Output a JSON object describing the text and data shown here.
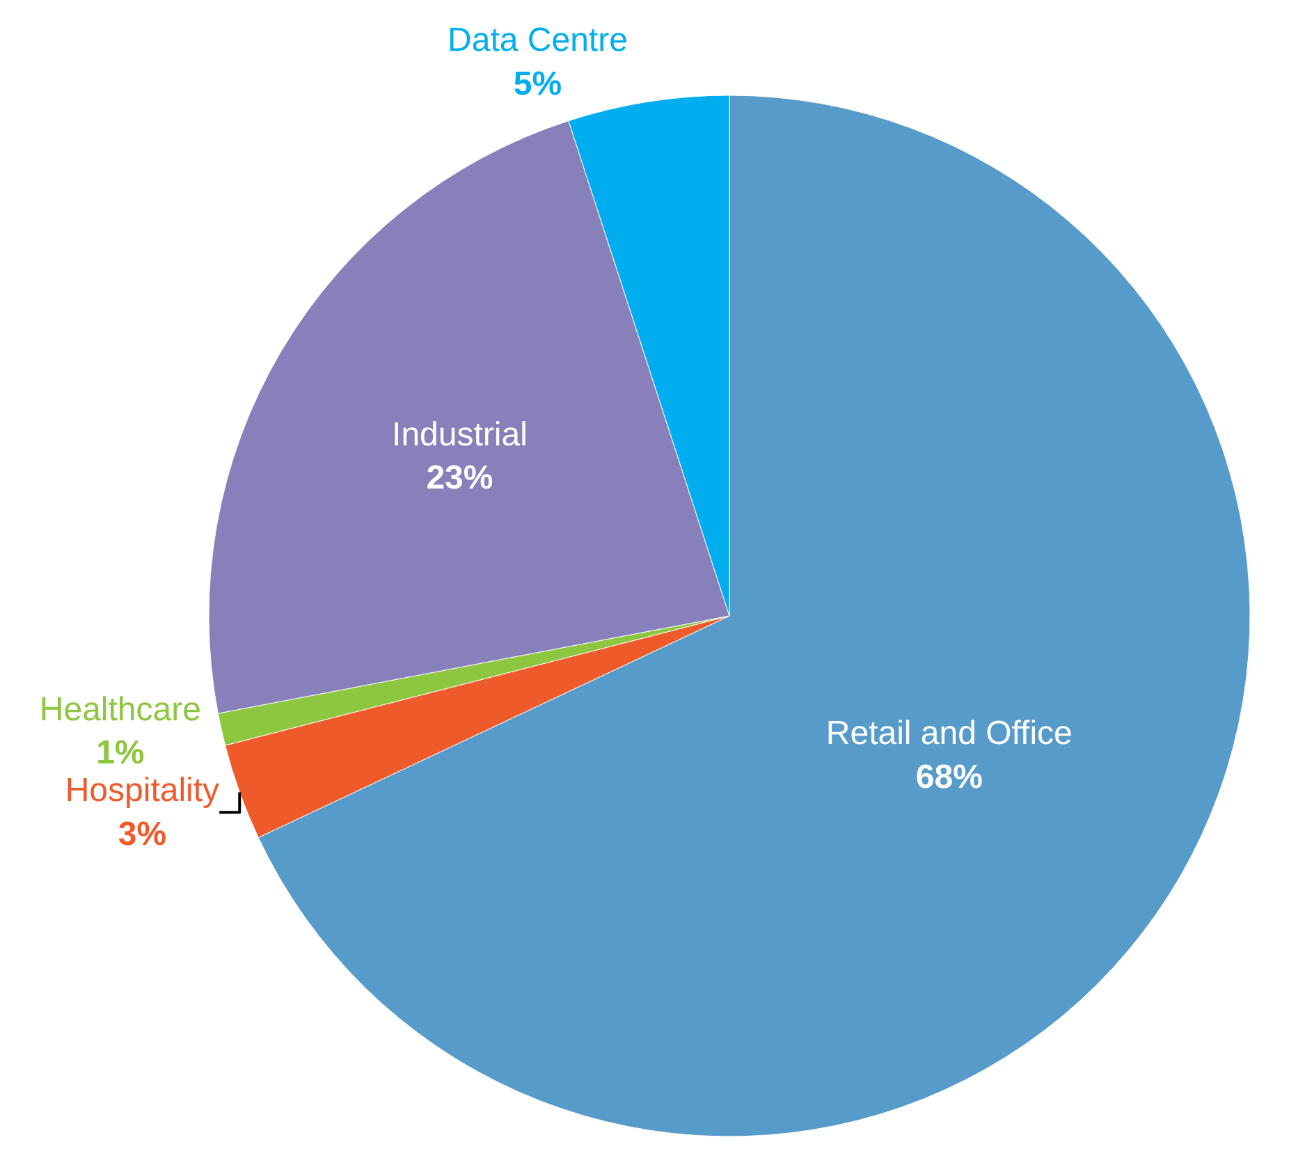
{
  "chart_data": {
    "type": "pie",
    "categories": [
      "Retail and Office",
      "Hospitality",
      "Healthcare",
      "Industrial",
      "Data Centre"
    ],
    "values": [
      68,
      3,
      1,
      23,
      5
    ],
    "value_labels": [
      "68%",
      "3%",
      "1%",
      "23%",
      "5%"
    ],
    "colors": [
      "#579bca",
      "#ef5a2b",
      "#8dc63f",
      "#8780ba",
      "#00aeef"
    ]
  }
}
